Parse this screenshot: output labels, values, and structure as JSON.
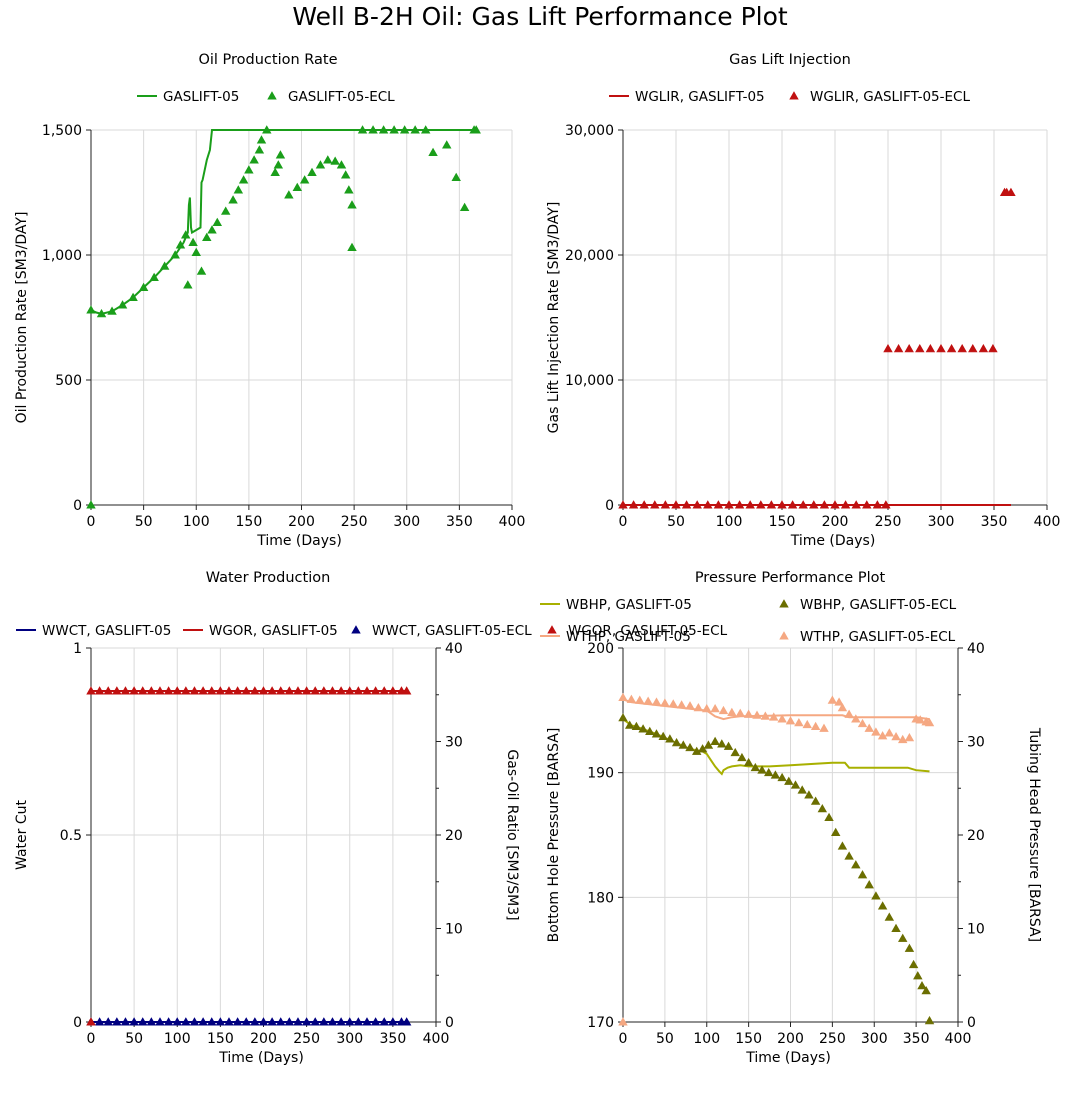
{
  "title": "Well B-2H Oil: Gas Lift Performance Plot",
  "chart_data": [
    {
      "type": "line",
      "title": "Oil Production Rate",
      "xlabel": "Time (Days)",
      "ylabel": "Oil Production Rate [SM3/DAY]",
      "xlim": [
        0,
        400
      ],
      "xticks": [
        0,
        50,
        100,
        150,
        200,
        250,
        300,
        350,
        400
      ],
      "ylim": [
        0,
        1500
      ],
      "yticks": [
        0,
        500,
        1000,
        1500
      ],
      "ytick_labels": [
        "0",
        "500",
        "1,000",
        "1,500"
      ],
      "grid": true,
      "legend": "top",
      "series": [
        {
          "name": "GASLIFT-05",
          "style": "line",
          "color": "#1a9e1a",
          "x": [
            0,
            5,
            10,
            20,
            30,
            40,
            50,
            60,
            70,
            80,
            88,
            92,
            93,
            94,
            95,
            96,
            100,
            104,
            105,
            106,
            110,
            113,
            115,
            120,
            200,
            300,
            366
          ],
          "y": [
            780,
            770,
            765,
            775,
            800,
            830,
            870,
            910,
            955,
            1000,
            1050,
            1090,
            1200,
            1230,
            1110,
            1090,
            1100,
            1110,
            1290,
            1300,
            1380,
            1420,
            1500,
            1500,
            1500,
            1500,
            1500
          ]
        },
        {
          "name": "GASLIFT-05-ECL",
          "style": "marker",
          "color": "#1a9e1a",
          "x": [
            0,
            0,
            10,
            20,
            30,
            40,
            50,
            60,
            70,
            80,
            85,
            90,
            92,
            97,
            100,
            105,
            110,
            115,
            120,
            128,
            135,
            140,
            145,
            150,
            155,
            160,
            162,
            167,
            175,
            178,
            180,
            188,
            196,
            203,
            210,
            218,
            225,
            232,
            238,
            242,
            245,
            248,
            248,
            258,
            268,
            278,
            288,
            298,
            308,
            318,
            325,
            338,
            347,
            355,
            364,
            366
          ],
          "y": [
            780,
            0,
            765,
            775,
            800,
            830,
            870,
            910,
            955,
            1000,
            1040,
            1080,
            880,
            1050,
            1010,
            935,
            1070,
            1100,
            1130,
            1175,
            1220,
            1260,
            1300,
            1340,
            1380,
            1420,
            1460,
            1500,
            1330,
            1360,
            1400,
            1240,
            1270,
            1300,
            1330,
            1360,
            1380,
            1375,
            1360,
            1320,
            1260,
            1200,
            1030,
            1500,
            1500,
            1500,
            1500,
            1500,
            1500,
            1500,
            1410,
            1440,
            1310,
            1190,
            1500,
            1500
          ]
        }
      ]
    },
    {
      "type": "line",
      "title": "Gas Lift Injection",
      "xlabel": "Time (Days)",
      "ylabel": "Gas Lift Injection Rate [SM3/DAY]",
      "xlim": [
        0,
        400
      ],
      "xticks": [
        0,
        50,
        100,
        150,
        200,
        250,
        300,
        350,
        400
      ],
      "ylim": [
        0,
        30000
      ],
      "yticks": [
        0,
        10000,
        20000,
        30000
      ],
      "ytick_labels": [
        "0",
        "10,000",
        "20,000",
        "30,000"
      ],
      "grid": true,
      "legend": "top",
      "series": [
        {
          "name": "WGLIR, GASLIFT-05",
          "style": "line",
          "color": "#c01010",
          "x": [
            0,
            366
          ],
          "y": [
            0,
            0
          ]
        },
        {
          "name": "WGLIR, GASLIFT-05-ECL",
          "style": "marker",
          "color": "#c01010",
          "x": [
            0,
            10,
            20,
            30,
            40,
            50,
            60,
            70,
            80,
            90,
            100,
            110,
            120,
            130,
            140,
            150,
            160,
            170,
            180,
            190,
            200,
            210,
            220,
            230,
            240,
            248,
            250,
            260,
            270,
            280,
            290,
            300,
            310,
            320,
            330,
            340,
            349,
            360,
            362,
            366
          ],
          "y": [
            0,
            0,
            0,
            0,
            0,
            0,
            0,
            0,
            0,
            0,
            0,
            0,
            0,
            0,
            0,
            0,
            0,
            0,
            0,
            0,
            0,
            0,
            0,
            0,
            0,
            0,
            12500,
            12500,
            12500,
            12500,
            12500,
            12500,
            12500,
            12500,
            12500,
            12500,
            12500,
            25000,
            25000,
            25000
          ]
        }
      ]
    },
    {
      "type": "line",
      "title": "Water Production",
      "xlabel": "Time (Days)",
      "ylabel": "Water Cut",
      "y2label": "Gas-Oil Ratio [SM3/SM3]",
      "xlim": [
        0,
        400
      ],
      "xticks": [
        0,
        50,
        100,
        150,
        200,
        250,
        300,
        350,
        400
      ],
      "ylim": [
        0,
        1
      ],
      "yticks": [
        0,
        0.5,
        1
      ],
      "ytick_labels": [
        "0",
        "0.5",
        "1"
      ],
      "y2lim": [
        0,
        40
      ],
      "y2ticks": [
        0,
        10,
        20,
        30,
        40
      ],
      "ytick2_labels": [
        "0",
        "10",
        "20",
        "30",
        "40"
      ],
      "grid": true,
      "legend": "top",
      "series": [
        {
          "name": "WWCT, GASLIFT-05",
          "style": "line",
          "color": "#000080",
          "axis": "left",
          "x": [
            0,
            366
          ],
          "y": [
            0,
            0
          ]
        },
        {
          "name": "WGOR, GASLIFT-05",
          "style": "line",
          "color": "#c01010",
          "axis": "right",
          "x": [
            0,
            366
          ],
          "y": [
            35.4,
            35.4
          ]
        },
        {
          "name": "WWCT, GASLIFT-05-ECL",
          "style": "marker",
          "color": "#000080",
          "axis": "left",
          "x": [
            0,
            10,
            20,
            30,
            40,
            50,
            60,
            70,
            80,
            90,
            100,
            110,
            120,
            130,
            140,
            150,
            160,
            170,
            180,
            190,
            200,
            210,
            220,
            230,
            240,
            250,
            260,
            270,
            280,
            290,
            300,
            310,
            320,
            330,
            340,
            350,
            360,
            366
          ],
          "y": [
            0,
            0,
            0,
            0,
            0,
            0,
            0,
            0,
            0,
            0,
            0,
            0,
            0,
            0,
            0,
            0,
            0,
            0,
            0,
            0,
            0,
            0,
            0,
            0,
            0,
            0,
            0,
            0,
            0,
            0,
            0,
            0,
            0,
            0,
            0,
            0,
            0,
            0
          ]
        },
        {
          "name": "WGOR, GASLIFT-05-ECL",
          "style": "marker",
          "color": "#c01010",
          "axis": "right",
          "x": [
            0,
            0,
            10,
            20,
            30,
            40,
            50,
            60,
            70,
            80,
            90,
            100,
            110,
            120,
            130,
            140,
            150,
            160,
            170,
            180,
            190,
            200,
            210,
            220,
            230,
            240,
            250,
            260,
            270,
            280,
            290,
            300,
            310,
            320,
            330,
            340,
            350,
            360,
            366
          ],
          "y": [
            0,
            35.4,
            35.4,
            35.4,
            35.4,
            35.4,
            35.4,
            35.4,
            35.4,
            35.4,
            35.4,
            35.4,
            35.4,
            35.4,
            35.4,
            35.4,
            35.4,
            35.4,
            35.4,
            35.4,
            35.4,
            35.4,
            35.4,
            35.4,
            35.4,
            35.4,
            35.4,
            35.4,
            35.4,
            35.4,
            35.4,
            35.4,
            35.4,
            35.4,
            35.4,
            35.4,
            35.4,
            35.4,
            35.4
          ]
        }
      ]
    },
    {
      "type": "line",
      "title": "Pressure Performance Plot",
      "xlabel": "Time (Days)",
      "ylabel": "Bottom Hole Pressure [BARSA]",
      "y2label": "Tubing Head Pressure [BARSA]",
      "xlim": [
        0,
        400
      ],
      "xticks": [
        0,
        50,
        100,
        150,
        200,
        250,
        300,
        350,
        400
      ],
      "ylim": [
        170,
        200
      ],
      "yticks": [
        170,
        180,
        190,
        200
      ],
      "ytick_labels": [
        "170",
        "180",
        "190",
        "200"
      ],
      "y2lim": [
        0,
        40
      ],
      "y2ticks": [
        0,
        10,
        20,
        30,
        40
      ],
      "ytick2_labels": [
        "0",
        "10",
        "20",
        "30",
        "40"
      ],
      "grid": true,
      "legend": "top",
      "series": [
        {
          "name": "WBHP, GASLIFT-05",
          "style": "line",
          "color": "#a8b000",
          "axis": "left",
          "x": [
            0,
            10,
            20,
            40,
            60,
            80,
            95,
            100,
            105,
            110,
            115,
            118,
            120,
            125,
            130,
            140,
            150,
            175,
            200,
            250,
            265,
            270,
            300,
            340,
            350,
            366
          ],
          "y": [
            194.3,
            193.8,
            193.6,
            193.1,
            192.5,
            191.9,
            191.7,
            191.5,
            191.0,
            190.5,
            190.1,
            189.9,
            190.2,
            190.4,
            190.5,
            190.6,
            190.5,
            190.5,
            190.6,
            190.8,
            190.8,
            190.4,
            190.4,
            190.4,
            190.2,
            190.1
          ]
        },
        {
          "name": "WBHP, GASLIFT-05-ECL",
          "style": "marker",
          "color": "#6b6e00",
          "axis": "left",
          "x": [
            0,
            8,
            16,
            24,
            32,
            40,
            48,
            56,
            64,
            72,
            80,
            88,
            95,
            102,
            110,
            118,
            126,
            134,
            142,
            150,
            158,
            166,
            174,
            182,
            190,
            198,
            206,
            214,
            222,
            230,
            238,
            246,
            254,
            262,
            270,
            278,
            286,
            294,
            302,
            310,
            318,
            326,
            334,
            342,
            347,
            352,
            357,
            362,
            366
          ],
          "y": [
            194.4,
            193.8,
            193.7,
            193.5,
            193.3,
            193.1,
            192.9,
            192.7,
            192.4,
            192.2,
            192.0,
            191.7,
            191.9,
            192.2,
            192.5,
            192.3,
            192.1,
            191.6,
            191.2,
            190.8,
            190.4,
            190.2,
            190.0,
            189.8,
            189.6,
            189.3,
            189.0,
            188.6,
            188.2,
            187.7,
            187.1,
            186.4,
            185.2,
            184.1,
            183.3,
            182.6,
            181.8,
            181.0,
            180.1,
            179.3,
            178.4,
            177.5,
            176.7,
            175.9,
            174.6,
            173.7,
            172.9,
            172.5,
            170.1
          ]
        },
        {
          "name": "WTHP, GASLIFT-05",
          "style": "line",
          "color": "#f5a882",
          "axis": "right",
          "x": [
            0,
            10,
            50,
            100,
            110,
            120,
            130,
            140,
            200,
            250,
            262,
            270,
            300,
            350,
            366
          ],
          "y": [
            34.5,
            34.2,
            33.8,
            33.3,
            32.7,
            32.4,
            32.6,
            32.7,
            32.8,
            32.8,
            32.8,
            32.6,
            32.6,
            32.6,
            32.4
          ]
        },
        {
          "name": "WTHP, GASLIFT-05-ECL",
          "style": "marker",
          "color": "#f5a882",
          "axis": "right",
          "x": [
            0,
            0,
            10,
            20,
            30,
            40,
            50,
            60,
            70,
            80,
            90,
            100,
            110,
            120,
            130,
            140,
            150,
            160,
            170,
            180,
            190,
            200,
            210,
            220,
            230,
            240,
            250,
            258,
            262,
            270,
            278,
            286,
            294,
            302,
            310,
            318,
            326,
            334,
            342,
            350,
            355,
            362,
            366
          ],
          "y": [
            0,
            34.7,
            34.5,
            34.4,
            34.3,
            34.2,
            34.1,
            34.0,
            33.9,
            33.8,
            33.6,
            33.5,
            33.5,
            33.3,
            33.1,
            33.0,
            32.9,
            32.8,
            32.7,
            32.6,
            32.4,
            32.2,
            32.0,
            31.8,
            31.6,
            31.4,
            34.4,
            34.2,
            33.6,
            32.9,
            32.4,
            31.9,
            31.4,
            31.0,
            30.6,
            30.9,
            30.5,
            30.2,
            30.4,
            32.4,
            32.3,
            32.1,
            32.0
          ]
        }
      ]
    }
  ]
}
